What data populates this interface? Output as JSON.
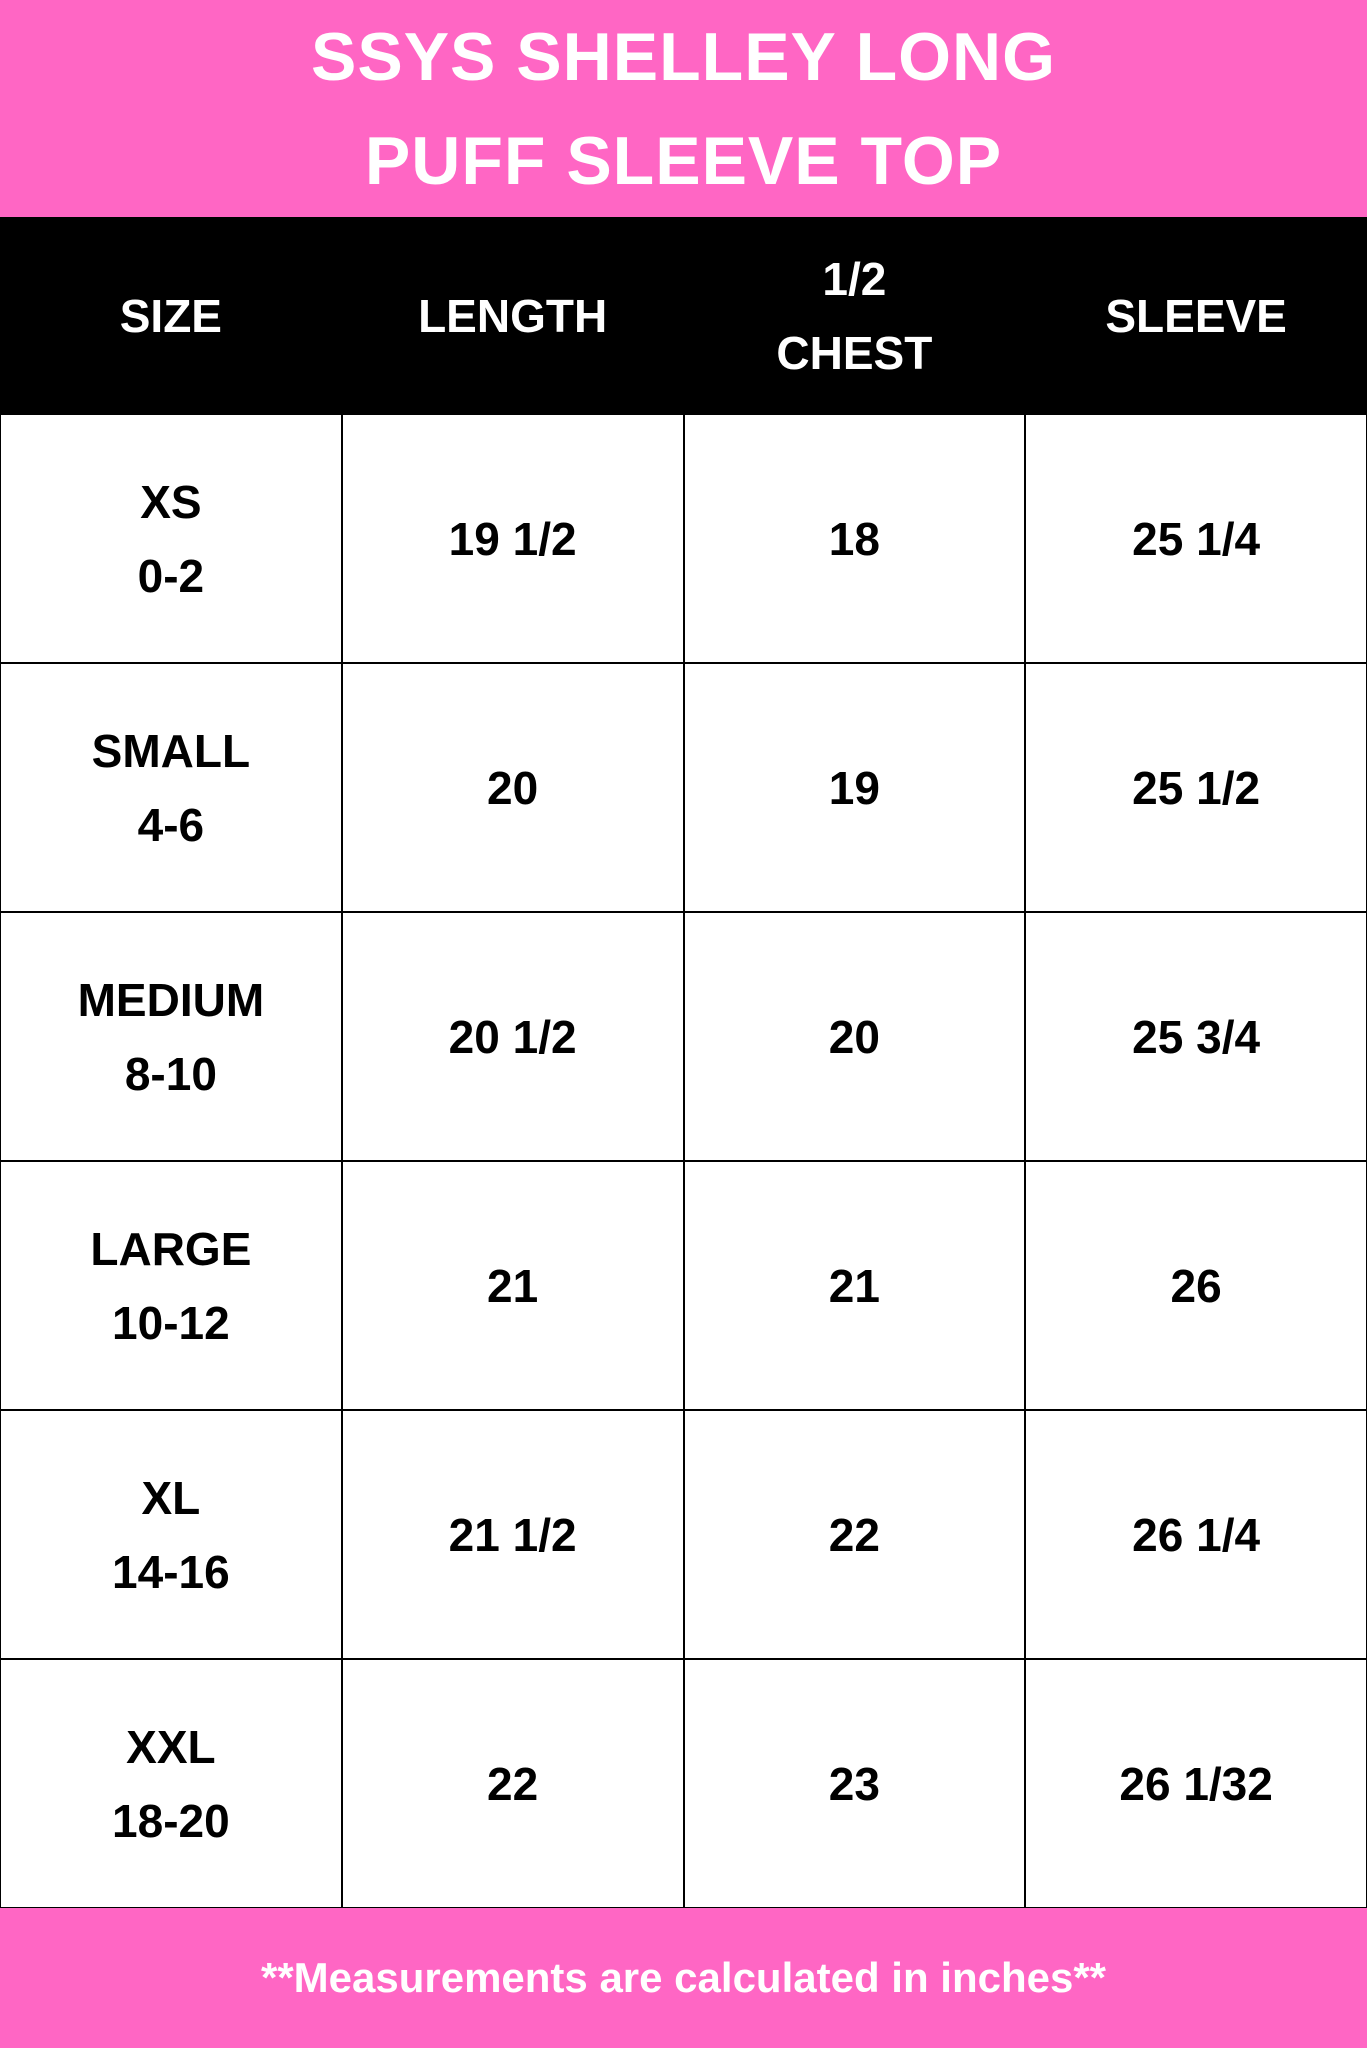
{
  "title": {
    "line1": "SSYS SHELLEY LONG",
    "line2": "PUFF SLEEVE TOP"
  },
  "colors": {
    "accent": "#ff66c4",
    "header_bg": "#000000"
  },
  "table": {
    "headers": [
      "SIZE",
      "LENGTH",
      "1/2 CHEST",
      "SLEEVE"
    ],
    "header_chest_lines": [
      "1/2",
      "CHEST"
    ],
    "rows": [
      {
        "size": "XS",
        "range": "0-2",
        "length": "19 1/2",
        "chest": "18",
        "sleeve": "25 1/4"
      },
      {
        "size": "SMALL",
        "range": "4-6",
        "length": "20",
        "chest": "19",
        "sleeve": "25 1/2"
      },
      {
        "size": "MEDIUM",
        "range": "8-10",
        "length": "20 1/2",
        "chest": "20",
        "sleeve": "25 3/4"
      },
      {
        "size": "LARGE",
        "range": "10-12",
        "length": "21",
        "chest": "21",
        "sleeve": "26"
      },
      {
        "size": "XL",
        "range": "14-16",
        "length": "21 1/2",
        "chest": "22",
        "sleeve": "26 1/4"
      },
      {
        "size": "XXL",
        "range": "18-20",
        "length": "22",
        "chest": "23",
        "sleeve": "26 1/32"
      }
    ]
  },
  "footer": {
    "note": "**Measurements are calculated in inches**"
  }
}
